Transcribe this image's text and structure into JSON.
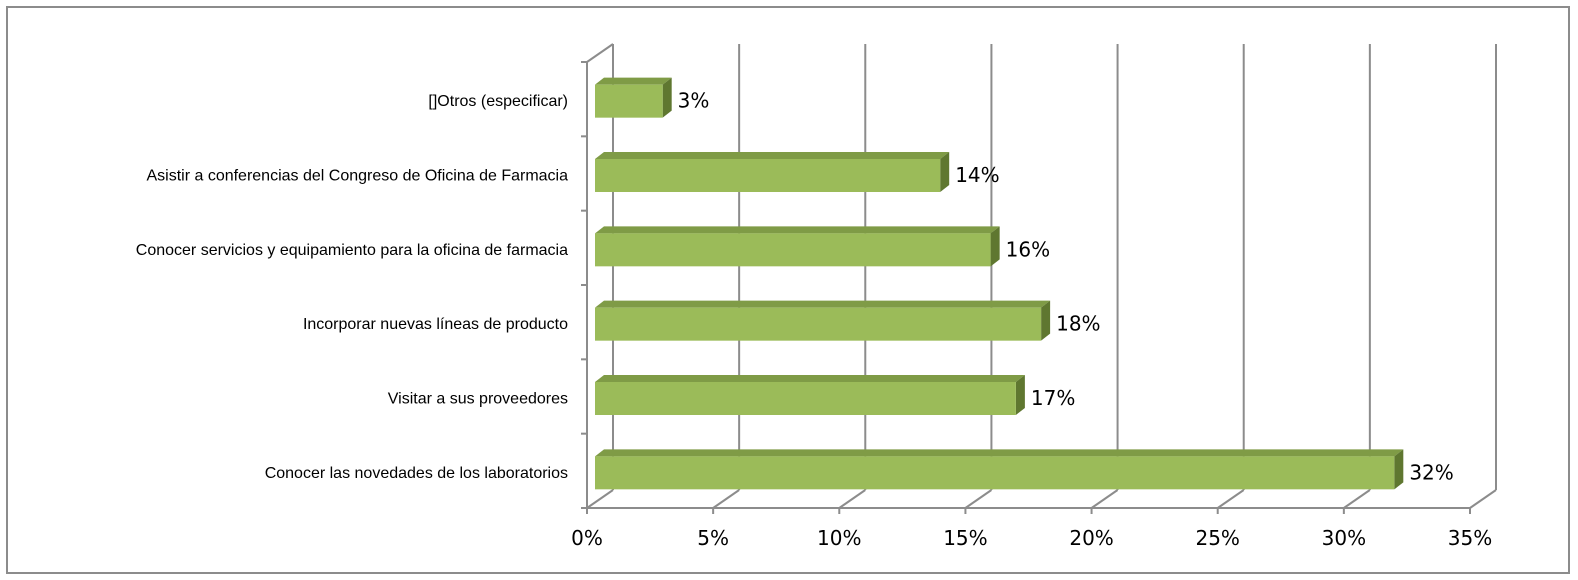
{
  "chart_data": {
    "type": "bar",
    "orientation": "horizontal",
    "style": "3d-clustered",
    "categories": [
      "Conocer las novedades de los laboratorios",
      "Visitar a sus proveedores",
      "Incorporar nuevas líneas de producto",
      "Conocer servicios y equipamiento para la oficina de farmacia",
      "Asistir a conferencias del Congreso de Oficina de Farmacia",
      "[]Otros (especificar)"
    ],
    "values": [
      32,
      17,
      18,
      16,
      14,
      3
    ],
    "data_labels": [
      "32%",
      "17%",
      "18%",
      "16%",
      "14%",
      "3%"
    ],
    "xlim": [
      0,
      35
    ],
    "ticks": [
      0,
      5,
      10,
      15,
      20,
      25,
      30,
      35
    ],
    "tick_labels": [
      "0%",
      "5%",
      "10%",
      "15%",
      "20%",
      "25%",
      "30%",
      "35%"
    ],
    "title": "",
    "xlabel": "",
    "ylabel": "",
    "grid": "vertical",
    "legend": "none",
    "colors": {
      "bar_front": "#9bbb59",
      "bar_top": "#7f9b46",
      "bar_side": "#5f7730",
      "gridline": "#8c8c8c",
      "frame": "#8c8c8c"
    }
  }
}
